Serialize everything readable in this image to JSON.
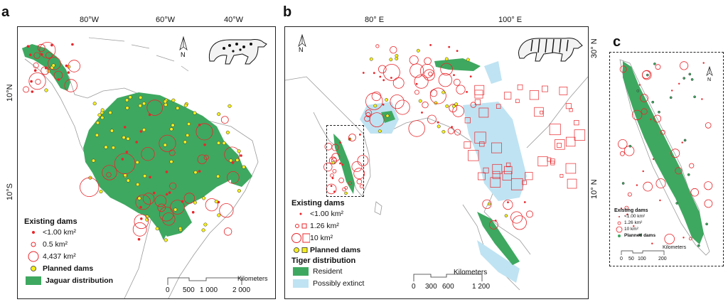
{
  "panel_a": {
    "label": "a",
    "lon_labels": [
      "80°W",
      "60°W",
      "40°W"
    ],
    "lat_labels": [
      "10°N",
      "10°S"
    ],
    "north": "N",
    "legend": {
      "title": "Existing dams",
      "items": [
        "<1.00 km²",
        "0.5 km²",
        "4,437 km²"
      ],
      "planned": "Planned dams",
      "distribution": "Jaguar distribution"
    },
    "scale": {
      "unit": "Kilometers",
      "ticks": [
        "0",
        "500",
        "1 000",
        "2 000"
      ]
    }
  },
  "panel_b": {
    "label": "b",
    "lon_labels": [
      "80° E",
      "100° E"
    ],
    "lat_labels": [
      "30° N",
      "10° N"
    ],
    "north": "N",
    "legend": {
      "title": "Existing dams",
      "items": [
        "<1.00 km²",
        "1.26 km²",
        "10 km²"
      ],
      "planned": "Planned dams",
      "distribution_title": "Tiger distribution",
      "resident": "Resident",
      "extinct": "Possibly extinct"
    },
    "scale": {
      "unit": "Kilometers",
      "ticks": [
        "0",
        "300",
        "600",
        "1 200"
      ]
    }
  },
  "panel_c": {
    "label": "c",
    "north": "N",
    "legend": {
      "title": "Existing dams",
      "items": [
        "<1.00 km²",
        "1.26 km²",
        "10 km²"
      ],
      "planned": "Planned dams"
    },
    "scale": {
      "unit": "Kilometers",
      "ticks": [
        "0",
        "50",
        "100",
        "200"
      ]
    }
  },
  "colors": {
    "habitat": "#3ea860",
    "extinct": "#bfe3f2",
    "dam": "#e8262b",
    "planned": "#f5ee1b",
    "coast": "#9a9a9a"
  }
}
